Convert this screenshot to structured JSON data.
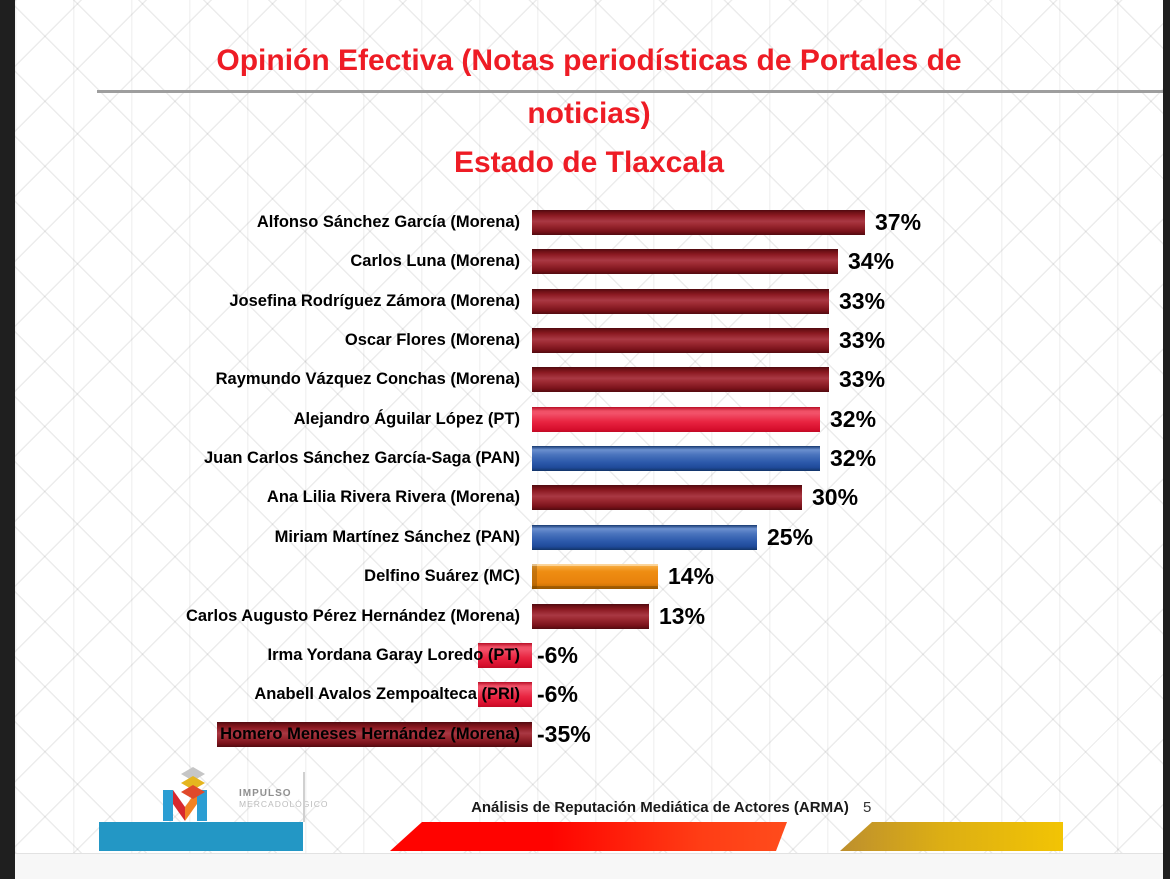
{
  "title": {
    "line1": "Opinión Efectiva (Notas periodísticas de Portales de",
    "line2": "noticias)",
    "subtitle": "Estado de Tlaxcala"
  },
  "chart_data": {
    "type": "bar",
    "orientation": "horizontal",
    "title": "Opinión Efectiva (Notas periodísticas de Portales de noticias)",
    "subtitle": "Estado de Tlaxcala",
    "unit": "%",
    "value_range": [
      -35,
      37
    ],
    "categories": [
      "Alfonso Sánchez García (Morena)",
      "Carlos Luna (Morena)",
      "Josefina Rodríguez Zámora (Morena)",
      "Oscar Flores (Morena)",
      "Raymundo Vázquez Conchas (Morena)",
      "Alejandro Águilar López (PT)",
      "Juan Carlos Sánchez García-Saga (PAN)",
      "Ana Lilia Rivera Rivera (Morena)",
      "Miriam Martínez Sánchez (PAN)",
      "Delfino Suárez (MC)",
      "Carlos Augusto Pérez Hernández (Morena)",
      "Irma Yordana Garay Loredo (PT)",
      "Anabell Avalos Zempoalteca (PRI)",
      "Homero Meneses Hernández (Morena)"
    ],
    "values": [
      37,
      34,
      33,
      33,
      33,
      32,
      32,
      30,
      25,
      14,
      13,
      -6,
      -6,
      -35
    ],
    "parties": [
      "Morena",
      "Morena",
      "Morena",
      "Morena",
      "Morena",
      "PT",
      "PAN",
      "Morena",
      "PAN",
      "MC",
      "Morena",
      "PT",
      "PRI",
      "Morena"
    ],
    "data_labels": [
      "37%",
      "34%",
      "33%",
      "33%",
      "33%",
      "32%",
      "32%",
      "30%",
      "25%",
      "14%",
      "13%",
      "-6%",
      "-6%",
      "-35%"
    ],
    "party_colors": {
      "Morena": "#7a121a",
      "PT": "#e82340",
      "PAN": "#2c59ab",
      "MC": "#e8820c",
      "PRI": "#e82340"
    },
    "legend": "none",
    "grid": "off"
  },
  "footer": {
    "logo_line1": "IMPULSO",
    "logo_line2": "MERCADOLÓGICO",
    "caption": "Análisis de Reputación Mediática de Actores (ARMA)",
    "page_number": "5"
  }
}
